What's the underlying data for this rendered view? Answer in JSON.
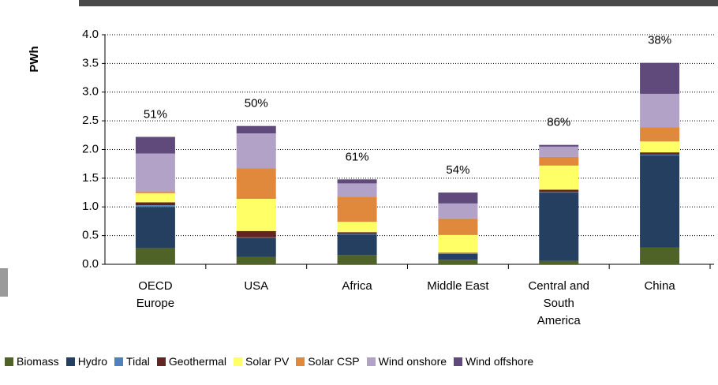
{
  "chart_data": {
    "type": "stacked_bar",
    "y_label": "PWh",
    "categories": [
      "OECD Europe",
      "USA",
      "Africa",
      "Middle East",
      "Central and South America",
      "China"
    ],
    "share_labels": [
      "51%",
      "50%",
      "61%",
      "54%",
      "86%",
      "38%"
    ],
    "ylim": [
      0,
      4.0
    ],
    "yticks": [
      {
        "value": 0,
        "label": "0.0"
      },
      0.5,
      {
        "value": 1,
        "label": "1.0"
      },
      1.5,
      {
        "value": 2,
        "label": "2.0"
      },
      2.5,
      {
        "value": 3,
        "label": "3.0"
      },
      3.5,
      {
        "value": 4,
        "label": "4.0"
      }
    ],
    "grid": true,
    "series": [
      {
        "name": "Biomass",
        "color": "#4f6228",
        "values": [
          0.28,
          0.13,
          0.16,
          0.08,
          0.06,
          0.29
        ]
      },
      {
        "name": "Hydro",
        "color": "#243f60",
        "values": [
          0.72,
          0.33,
          0.36,
          0.1,
          1.19,
          1.61
        ]
      },
      {
        "name": "Tidal",
        "color": "#4f81bd",
        "values": [
          0.03,
          0.01,
          0.01,
          0.01,
          0.01,
          0.01
        ]
      },
      {
        "name": "Geothermal",
        "color": "#632523",
        "values": [
          0.05,
          0.11,
          0.03,
          0.01,
          0.04,
          0.04
        ]
      },
      {
        "name": "Solar PV",
        "color": "#ffff66",
        "values": [
          0.16,
          0.56,
          0.18,
          0.31,
          0.42,
          0.19
        ]
      },
      {
        "name": "Solar CSP",
        "color": "#e0883b",
        "values": [
          0.03,
          0.53,
          0.44,
          0.29,
          0.15,
          0.25
        ]
      },
      {
        "name": "Wind onshore",
        "color": "#b3a2c7",
        "values": [
          0.66,
          0.61,
          0.23,
          0.26,
          0.18,
          0.58
        ]
      },
      {
        "name": "Wind offshore",
        "color": "#604a7b",
        "values": [
          0.29,
          0.13,
          0.07,
          0.19,
          0.03,
          0.54
        ]
      }
    ]
  }
}
